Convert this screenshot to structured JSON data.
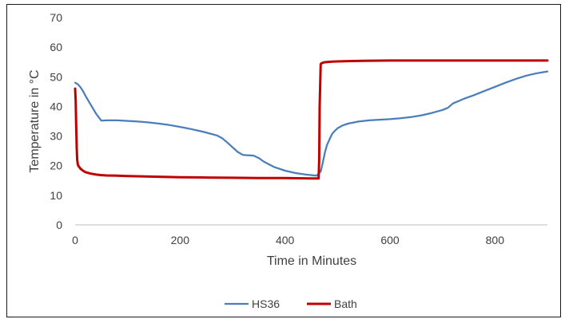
{
  "chart_data": {
    "type": "line",
    "title": "",
    "xlabel": "Time in Minutes",
    "ylabel": "Temperature in °C",
    "xlim": [
      0,
      900
    ],
    "ylim": [
      0,
      70
    ],
    "x_ticks": [
      0,
      200,
      400,
      600,
      800
    ],
    "y_ticks": [
      0,
      10,
      20,
      30,
      40,
      50,
      60,
      70
    ],
    "grid": false,
    "legend_position": "bottom",
    "series": [
      {
        "name": "HS36",
        "color": "#4a7ebb",
        "x": [
          0,
          5,
          10,
          15,
          20,
          30,
          40,
          50,
          60,
          80,
          100,
          120,
          140,
          160,
          180,
          200,
          220,
          240,
          260,
          270,
          280,
          290,
          300,
          310,
          320,
          330,
          340,
          350,
          360,
          380,
          400,
          420,
          440,
          460,
          468,
          472,
          476,
          480,
          485,
          490,
          495,
          500,
          510,
          520,
          540,
          560,
          580,
          600,
          620,
          640,
          660,
          680,
          700,
          710,
          720,
          740,
          760,
          780,
          800,
          820,
          840,
          860,
          880,
          900
        ],
        "values": [
          48,
          47.5,
          46.5,
          45.2,
          43.5,
          40.5,
          37.5,
          35.2,
          35.3,
          35.3,
          35.1,
          34.9,
          34.6,
          34.2,
          33.7,
          33.1,
          32.4,
          31.6,
          30.7,
          30.2,
          29.3,
          27.8,
          26.2,
          24.6,
          23.6,
          23.5,
          23.4,
          22.6,
          21.3,
          19.5,
          18.3,
          17.5,
          17.0,
          16.6,
          18.0,
          21.0,
          24.5,
          27.0,
          29.0,
          30.8,
          31.8,
          32.6,
          33.6,
          34.2,
          34.9,
          35.3,
          35.5,
          35.7,
          36.0,
          36.4,
          37.0,
          37.8,
          38.8,
          39.5,
          41.0,
          42.5,
          43.8,
          45.2,
          46.6,
          48.0,
          49.3,
          50.4,
          51.2,
          51.8
        ]
      },
      {
        "name": "Bath",
        "color": "#c00000",
        "x": [
          0,
          1,
          2,
          3,
          4,
          5,
          6,
          8,
          10,
          15,
          20,
          30,
          40,
          50,
          60,
          80,
          100,
          150,
          200,
          250,
          300,
          350,
          400,
          450,
          464,
          465,
          466,
          468,
          470,
          475,
          480,
          490,
          500,
          520,
          550,
          600,
          650,
          700,
          750,
          800,
          850,
          900
        ],
        "values": [
          46,
          42,
          34,
          26,
          22,
          20.5,
          20,
          19.5,
          19,
          18.3,
          17.8,
          17.3,
          17.0,
          16.8,
          16.7,
          16.6,
          16.5,
          16.3,
          16.1,
          16.0,
          15.9,
          15.8,
          15.8,
          15.7,
          15.7,
          22,
          40,
          54.3,
          54.6,
          54.9,
          55.0,
          55.1,
          55.2,
          55.3,
          55.4,
          55.5,
          55.5,
          55.5,
          55.5,
          55.5,
          55.5,
          55.5
        ]
      }
    ]
  }
}
